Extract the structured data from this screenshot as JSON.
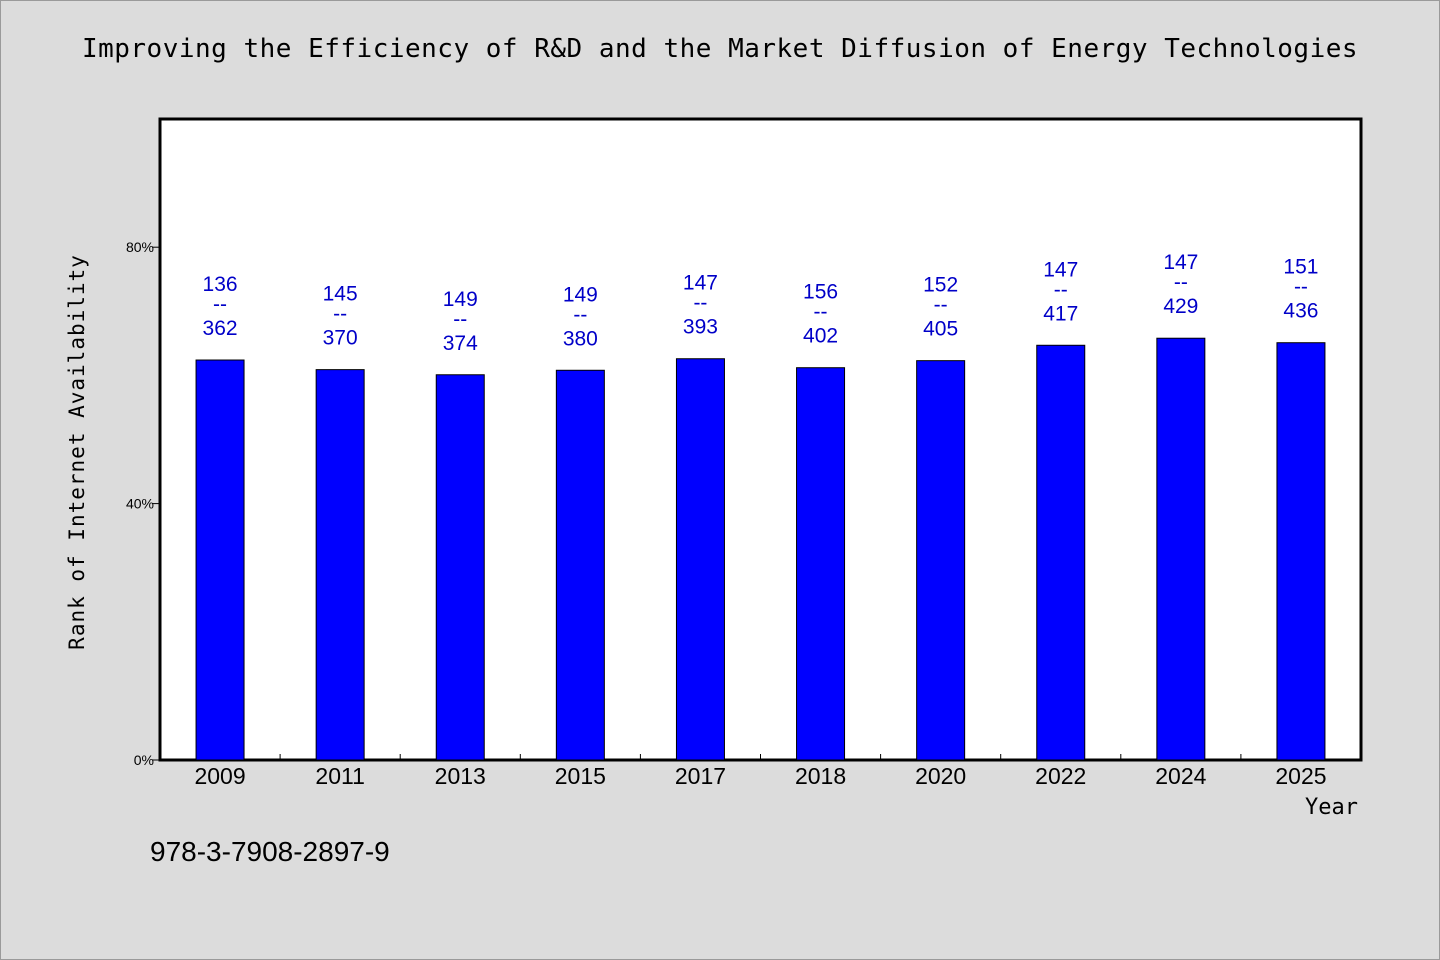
{
  "chart_data": {
    "type": "bar",
    "title": "Improving the Efficiency of R&D and the Market Diffusion of Energy Technologies",
    "xlabel": "Year",
    "ylabel": "Rank of Internet Availability",
    "categories": [
      "2009",
      "2011",
      "2013",
      "2015",
      "2017",
      "2018",
      "2020",
      "2022",
      "2024",
      "2025"
    ],
    "series": [
      {
        "values": [
          62.4,
          60.9,
          60.1,
          60.8,
          62.6,
          61.2,
          62.3,
          64.7,
          65.8,
          65.1
        ]
      }
    ],
    "data_labels": [
      {
        "top": "136",
        "sep": "--",
        "bottom": "362"
      },
      {
        "top": "145",
        "sep": "--",
        "bottom": "370"
      },
      {
        "top": "149",
        "sep": "--",
        "bottom": "374"
      },
      {
        "top": "149",
        "sep": "--",
        "bottom": "380"
      },
      {
        "top": "147",
        "sep": "--",
        "bottom": "393"
      },
      {
        "top": "156",
        "sep": "--",
        "bottom": "402"
      },
      {
        "top": "152",
        "sep": "--",
        "bottom": "405"
      },
      {
        "top": "147",
        "sep": "--",
        "bottom": "417"
      },
      {
        "top": "147",
        "sep": "--",
        "bottom": "429"
      },
      {
        "top": "151",
        "sep": "--",
        "bottom": "436"
      }
    ],
    "ylim": [
      0,
      100
    ],
    "yticks": [
      {
        "value": 0,
        "label": "0%"
      },
      {
        "value": 40,
        "label": "40%"
      },
      {
        "value": 80,
        "label": "80%"
      }
    ],
    "bar_color": "#0000ff",
    "label_color": "#0000c8",
    "grid": false,
    "legend": "none"
  },
  "footer": {
    "isbn": "978-3-7908-2897-9"
  }
}
